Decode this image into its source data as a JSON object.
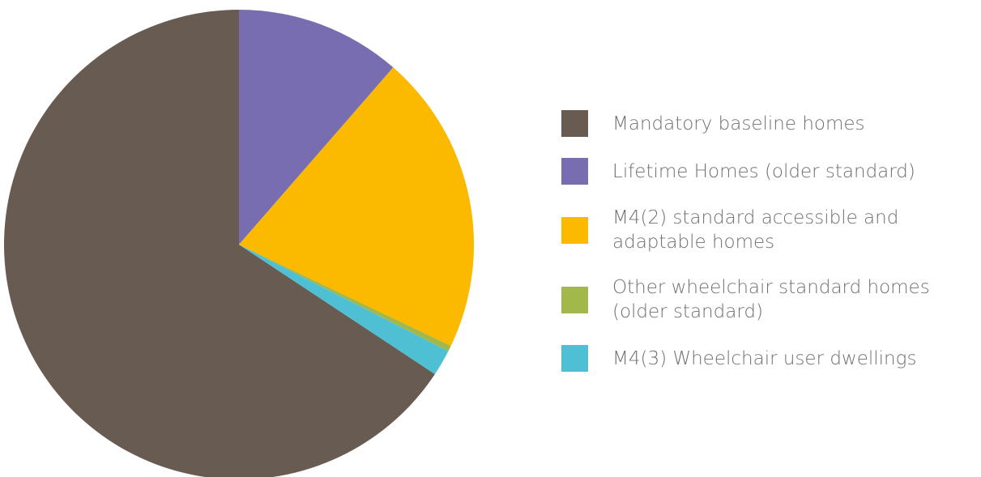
{
  "chart_data": {
    "type": "pie",
    "categories": [
      "Mandatory baseline homes",
      "Lifetime Homes (older standard)",
      "M4(2) standard accessible and adaptable homes",
      "Other wheelchair standard homes (older standard)",
      "M4(3) Wheelchair user dwellings"
    ],
    "values": [
      65.7,
      11.4,
      20.7,
      0.4,
      1.8
    ],
    "colors": [
      "#685b51",
      "#786db0",
      "#fbb900",
      "#a3b84a",
      "#4fc0d3"
    ],
    "legend": "right"
  }
}
